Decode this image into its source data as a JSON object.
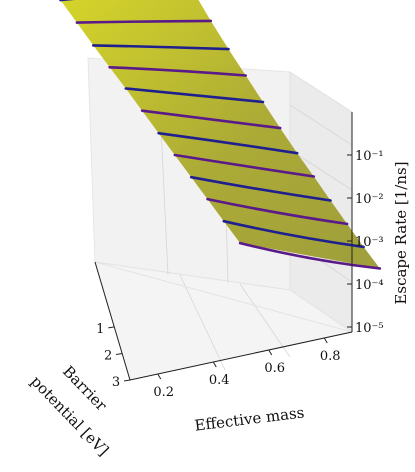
{
  "chart_data": {
    "type": "surface3d",
    "title": "",
    "xlabel": "Effective mass",
    "ylabel": "Barrier potential [eV]",
    "ylabel_lines": [
      "Barrier",
      "potential [eV]"
    ],
    "zlabel": "Escape Rate [1/ns]",
    "x_ticks": [
      "0.2",
      "0.4",
      "0.6",
      "0.8"
    ],
    "y_ticks": [
      "1",
      "2",
      "3"
    ],
    "z_ticks": [
      "10⁻¹",
      "10⁻²",
      "10⁻³",
      "10⁻⁴",
      "10⁻⁵"
    ],
    "z_scale": "log",
    "xlim": [
      0.1,
      0.9
    ],
    "ylim": [
      1,
      3
    ],
    "zlim": [
      1e-06,
      1
    ],
    "surface_color": "#b5b42a",
    "line_colors": [
      "#1f1f8f",
      "#5a1a8a"
    ],
    "series": [
      {
        "effective_mass": 0.1,
        "values": [
          0.8,
          0.55,
          0.28
        ]
      },
      {
        "effective_mass": 0.15,
        "values": [
          0.35,
          0.14,
          0.05
        ]
      },
      {
        "effective_mass": 0.2,
        "values": [
          0.15,
          0.045,
          0.012
        ]
      },
      {
        "effective_mass": 0.25,
        "values": [
          0.07,
          0.018,
          0.0035
        ]
      },
      {
        "effective_mass": 0.3,
        "values": [
          0.035,
          0.006,
          0.001
        ]
      },
      {
        "effective_mass": 0.35,
        "values": [
          0.016,
          0.0022,
          0.0003
        ]
      },
      {
        "effective_mass": 0.4,
        "values": [
          0.007,
          0.0009,
          0.0001
        ]
      },
      {
        "effective_mass": 0.45,
        "values": [
          0.0033,
          0.00035,
          4e-05
        ]
      },
      {
        "effective_mass": 0.5,
        "values": [
          0.0015,
          0.00013,
          1.5e-05
        ]
      },
      {
        "effective_mass": 0.55,
        "values": [
          0.0007,
          5e-05,
          6e-06
        ]
      },
      {
        "effective_mass": 0.6,
        "values": [
          0.00032,
          2e-05,
          2.5e-06
        ]
      },
      {
        "effective_mass": 0.65,
        "values": [
          0.00015,
          8e-06,
          1.2e-06
        ]
      }
    ]
  }
}
